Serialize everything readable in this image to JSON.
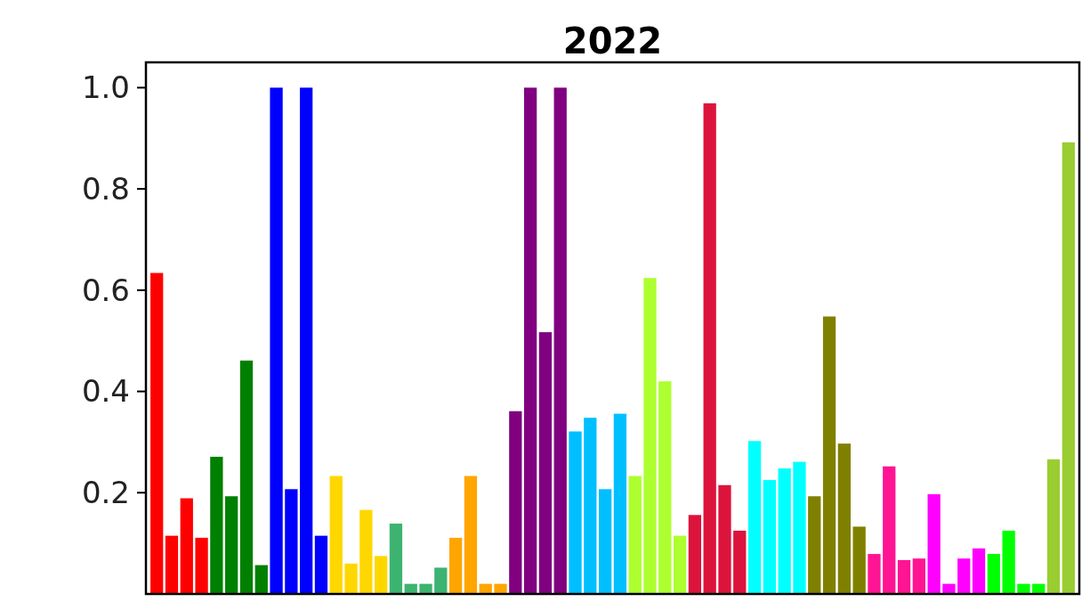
{
  "chart_data": {
    "type": "bar",
    "title": "2022",
    "categories": [
      null,
      null,
      null,
      null,
      null,
      null,
      null,
      null,
      null,
      null,
      null,
      null,
      null,
      null,
      null,
      null,
      null,
      null,
      null,
      null,
      null,
      null,
      null,
      null,
      null,
      null,
      null,
      null,
      null,
      null,
      null,
      null,
      null,
      null,
      null,
      null,
      null,
      null,
      null,
      null,
      null,
      null,
      null,
      null,
      null,
      null,
      null,
      null,
      null,
      null,
      null,
      null,
      null,
      null,
      null,
      null,
      null,
      null,
      null,
      null,
      null,
      null
    ],
    "values": [
      0.634,
      0.115,
      0.189,
      0.111,
      0.271,
      0.193,
      0.461,
      0.057,
      1.0,
      0.207,
      1.0,
      0.115,
      0.233,
      0.06,
      0.166,
      0.075,
      0.139,
      0.02,
      0.02,
      0.052,
      0.111,
      0.233,
      0.02,
      0.02,
      0.361,
      1.0,
      0.517,
      1.0,
      0.321,
      0.348,
      0.207,
      0.356,
      0.233,
      0.624,
      0.42,
      0.115,
      0.156,
      0.969,
      0.215,
      0.125,
      0.302,
      0.225,
      0.248,
      0.261,
      0.193,
      0.548,
      0.297,
      0.133,
      0.079,
      0.252,
      0.067,
      0.07,
      0.197,
      0.02,
      0.07,
      0.09,
      0.079,
      0.125,
      0.02,
      0.02,
      0.266,
      0.892
    ],
    "colors": [
      "#ff0000",
      "#ff0000",
      "#ff0000",
      "#ff0000",
      "#008000",
      "#008000",
      "#008000",
      "#008000",
      "#0000ff",
      "#0000ff",
      "#0000ff",
      "#0000ff",
      "#ffd700",
      "#ffd700",
      "#ffd700",
      "#ffd700",
      "#3cb371",
      "#3cb371",
      "#3cb371",
      "#3cb371",
      "#ffa500",
      "#ffa500",
      "#ffa500",
      "#ffa500",
      "#800080",
      "#800080",
      "#800080",
      "#800080",
      "#00bfff",
      "#00bfff",
      "#00bfff",
      "#00bfff",
      "#adff2f",
      "#adff2f",
      "#adff2f",
      "#adff2f",
      "#dc143c",
      "#dc143c",
      "#dc143c",
      "#dc143c",
      "#00ffff",
      "#00ffff",
      "#00ffff",
      "#00ffff",
      "#808000",
      "#808000",
      "#808000",
      "#808000",
      "#ff1493",
      "#ff1493",
      "#ff1493",
      "#ff1493",
      "#ff00ff",
      "#ff00ff",
      "#ff00ff",
      "#ff00ff",
      "#00ff00",
      "#00ff00",
      "#00ff00",
      "#00ff00",
      "#9acd32",
      "#9acd32"
    ],
    "ylim": [
      0,
      1.05
    ],
    "yticks": [
      {
        "value": 0.2,
        "label": "0.2"
      },
      {
        "value": 0.4,
        "label": "0.4"
      },
      {
        "value": 0.6,
        "label": "0.6"
      },
      {
        "value": 0.8,
        "label": "0.8"
      },
      {
        "value": 1.0,
        "label": "1.0"
      }
    ],
    "tick_labels": "y",
    "grid": false
  }
}
